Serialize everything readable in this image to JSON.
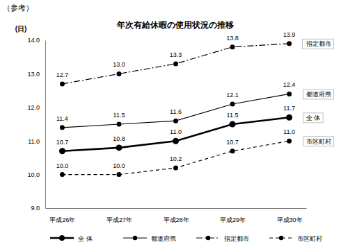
{
  "chart_data": {
    "type": "line",
    "title": "年次有給休暇の使用状況の推移",
    "annotations": [
      "（参考）"
    ],
    "y_label": "(日)",
    "categories": [
      "平成26年",
      "平成27年",
      "平成28年",
      "平成29年",
      "平成30年"
    ],
    "series": [
      {
        "name": "全 体",
        "color": "#000000",
        "line_style": "solid",
        "marker": "circle",
        "values": [
          10.7,
          10.8,
          11.0,
          11.5,
          11.7
        ],
        "value_labels": [
          "10.7",
          "10.8",
          "11.0",
          "11.5",
          "11.7"
        ]
      },
      {
        "name": "都道府県",
        "color": "#000000",
        "line_style": "solid",
        "marker": "circle",
        "values": [
          11.4,
          11.5,
          11.6,
          12.1,
          12.4
        ],
        "value_labels": [
          "11.4",
          "11.5",
          "11.6",
          "12.1",
          "12.4"
        ]
      },
      {
        "name": "指定都市",
        "color": "#000000",
        "line_style": "dashdot",
        "marker": "circle",
        "values": [
          12.7,
          13.0,
          13.3,
          13.8,
          13.9
        ],
        "value_labels": [
          "12.7",
          "13.0",
          "13.3",
          "13.8",
          "13.9"
        ]
      },
      {
        "name": "市区町村",
        "color": "#000000",
        "line_style": "dashed",
        "marker": "circle",
        "values": [
          10.0,
          10.0,
          10.2,
          10.7,
          11.0
        ],
        "value_labels": [
          "10.0",
          "10.0",
          "10.2",
          "10.7",
          "11.0"
        ]
      }
    ],
    "ylim": [
      9,
      14
    ],
    "yticks": [
      {
        "value": 9,
        "label": "9.0"
      },
      {
        "value": 10,
        "label": "10.0"
      },
      {
        "value": 11,
        "label": "11.0"
      },
      {
        "value": 12,
        "label": "12.0"
      },
      {
        "value": 13,
        "label": "13.0"
      },
      {
        "value": 14,
        "label": "14.0"
      }
    ],
    "grid": false,
    "legend": "bottom",
    "data_labels": true
  }
}
